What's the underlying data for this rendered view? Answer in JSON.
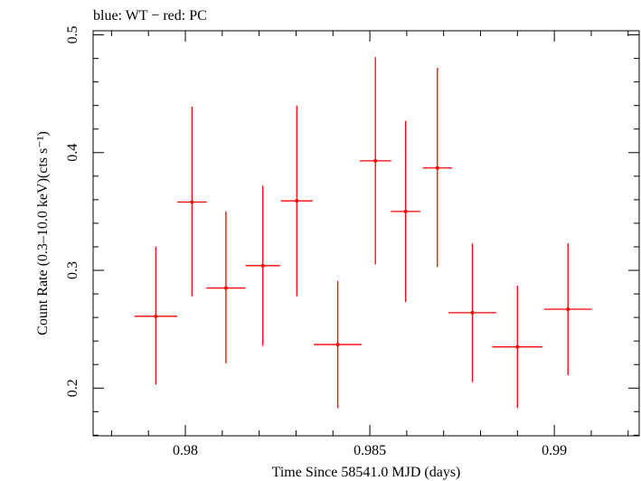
{
  "header": {
    "text": "blue: WT − red: PC"
  },
  "colors": {
    "series_pc": "#ff0000",
    "axis": "#000000",
    "background": "#ffffff"
  },
  "chart_data": {
    "type": "scatter",
    "xlabel": "Time Since 58541.0 MJD (days)",
    "ylabel": "Count Rate (0.3–10.0 keV)(cts s⁻¹)",
    "xlim": [
      0.9775,
      0.9923
    ],
    "ylim": [
      0.1595,
      0.5035
    ],
    "x_ticks": [
      0.98,
      0.985,
      0.99
    ],
    "x_tick_labels": [
      "0.98",
      "0.985",
      "0.99"
    ],
    "y_ticks": [
      0.2,
      0.3,
      0.4,
      0.5
    ],
    "y_tick_labels": [
      "0.2",
      "0.3",
      "0.4",
      "0.5"
    ],
    "series": [
      {
        "color": "#ff0000",
        "points": [
          {
            "x": 0.9792,
            "xerr": 0.00058,
            "y": 0.261,
            "ylo": 0.203,
            "yhi": 0.32
          },
          {
            "x": 0.98018,
            "xerr": 0.0004,
            "y": 0.358,
            "ylo": 0.278,
            "yhi": 0.439
          },
          {
            "x": 0.9811,
            "xerr": 0.00053,
            "y": 0.285,
            "ylo": 0.221,
            "yhi": 0.35
          },
          {
            "x": 0.9821,
            "xerr": 0.00047,
            "y": 0.304,
            "ylo": 0.236,
            "yhi": 0.372
          },
          {
            "x": 0.98302,
            "xerr": 0.00043,
            "y": 0.359,
            "ylo": 0.278,
            "yhi": 0.44
          },
          {
            "x": 0.98413,
            "xerr": 0.00065,
            "y": 0.237,
            "ylo": 0.183,
            "yhi": 0.291
          },
          {
            "x": 0.98515,
            "xerr": 0.00043,
            "y": 0.393,
            "ylo": 0.305,
            "yhi": 0.481
          },
          {
            "x": 0.98597,
            "xerr": 0.0004,
            "y": 0.35,
            "ylo": 0.273,
            "yhi": 0.427
          },
          {
            "x": 0.98683,
            "xerr": 0.0004,
            "y": 0.387,
            "ylo": 0.303,
            "yhi": 0.472
          },
          {
            "x": 0.98778,
            "xerr": 0.00065,
            "y": 0.264,
            "ylo": 0.205,
            "yhi": 0.323
          },
          {
            "x": 0.989,
            "xerr": 0.00068,
            "y": 0.235,
            "ylo": 0.183,
            "yhi": 0.287
          },
          {
            "x": 0.99037,
            "xerr": 0.00065,
            "y": 0.267,
            "ylo": 0.211,
            "yhi": 0.323
          }
        ]
      }
    ]
  }
}
